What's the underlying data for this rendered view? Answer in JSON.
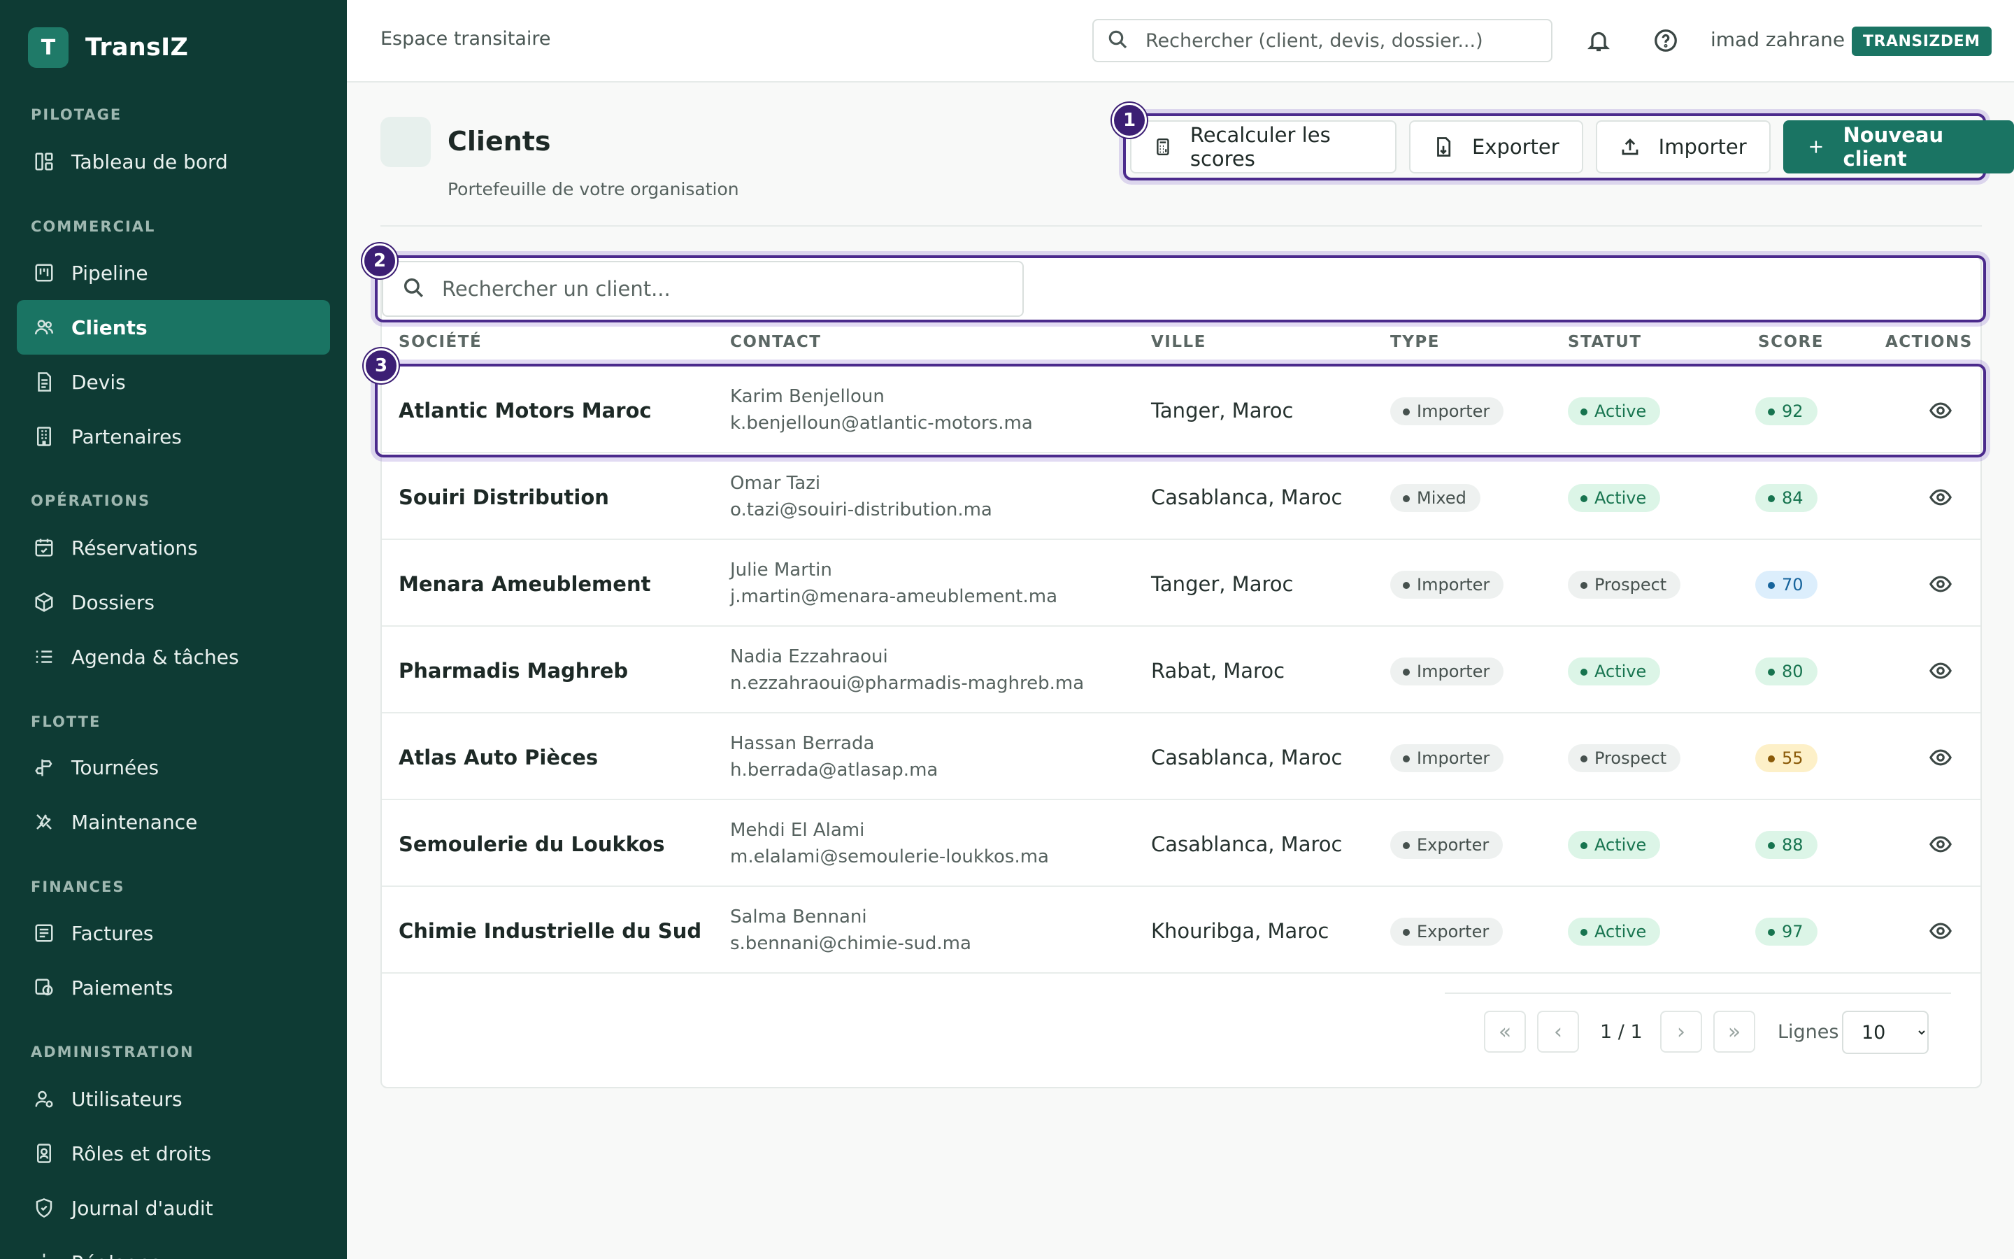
{
  "brand": {
    "logo_letter": "T",
    "name": "TransIZ"
  },
  "sidebar": {
    "sections": [
      {
        "title": "PILOTAGE",
        "items": [
          {
            "label": "Tableau de bord",
            "icon": "dashboard-icon"
          }
        ]
      },
      {
        "title": "COMMERCIAL",
        "items": [
          {
            "label": "Pipeline",
            "icon": "pipeline-icon"
          },
          {
            "label": "Clients",
            "icon": "users-icon",
            "active": true
          },
          {
            "label": "Devis",
            "icon": "document-icon"
          },
          {
            "label": "Partenaires",
            "icon": "building-icon"
          }
        ]
      },
      {
        "title": "OPÉRATIONS",
        "items": [
          {
            "label": "Réservations",
            "icon": "calendar-check-icon"
          },
          {
            "label": "Dossiers",
            "icon": "package-icon"
          },
          {
            "label": "Agenda & tâches",
            "icon": "list-icon"
          }
        ]
      },
      {
        "title": "FLOTTE",
        "items": [
          {
            "label": "Tournées",
            "icon": "route-icon"
          },
          {
            "label": "Maintenance",
            "icon": "wrench-icon"
          }
        ]
      },
      {
        "title": "FINANCES",
        "items": [
          {
            "label": "Factures",
            "icon": "invoice-icon"
          },
          {
            "label": "Paiements",
            "icon": "payment-icon"
          }
        ]
      },
      {
        "title": "ADMINISTRATION",
        "items": [
          {
            "label": "Utilisateurs",
            "icon": "user-settings-icon"
          },
          {
            "label": "Rôles et droits",
            "icon": "id-badge-icon"
          },
          {
            "label": "Journal d'audit",
            "icon": "shield-icon"
          },
          {
            "label": "Réglages",
            "icon": "settings-icon"
          }
        ]
      }
    ]
  },
  "topbar": {
    "title": "Espace transitaire",
    "search_placeholder": "Rechercher (client, devis, dossier...)",
    "user_name": "imad zahrane",
    "org_badge": "TRANSIZDEM"
  },
  "page": {
    "title": "Clients",
    "subtitle": "Portefeuille de votre organisation",
    "actions": {
      "recalc": "Recalculer les scores",
      "export": "Exporter",
      "import": "Importer",
      "new_client": "Nouveau client"
    },
    "search_placeholder": "Rechercher un client..."
  },
  "markers": [
    "1",
    "2",
    "3"
  ],
  "table": {
    "columns": [
      "SOCIÉTÉ",
      "CONTACT",
      "VILLE",
      "TYPE",
      "STATUT",
      "SCORE",
      "ACTIONS"
    ],
    "rows": [
      {
        "company": "Atlantic Motors Maroc",
        "contact_name": "Karim Benjelloun",
        "contact_email": "k.benjelloun@atlantic-motors.ma",
        "city": "Tanger, Maroc",
        "type": "Importer",
        "status": "Active",
        "score": "92",
        "score_tone": "green"
      },
      {
        "company": "Souiri Distribution",
        "contact_name": "Omar Tazi",
        "contact_email": "o.tazi@souiri-distribution.ma",
        "city": "Casablanca, Maroc",
        "type": "Mixed",
        "status": "Active",
        "score": "84",
        "score_tone": "green"
      },
      {
        "company": "Menara Ameublement",
        "contact_name": "Julie Martin",
        "contact_email": "j.martin@menara-ameublement.ma",
        "city": "Tanger, Maroc",
        "type": "Importer",
        "status": "Prospect",
        "score": "70",
        "score_tone": "blue"
      },
      {
        "company": "Pharmadis Maghreb",
        "contact_name": "Nadia Ezzahraoui",
        "contact_email": "n.ezzahraoui@pharmadis-maghreb.ma",
        "city": "Rabat, Maroc",
        "type": "Importer",
        "status": "Active",
        "score": "80",
        "score_tone": "green"
      },
      {
        "company": "Atlas Auto Pièces",
        "contact_name": "Hassan Berrada",
        "contact_email": "h.berrada@atlasap.ma",
        "city": "Casablanca, Maroc",
        "type": "Importer",
        "status": "Prospect",
        "score": "55",
        "score_tone": "amber"
      },
      {
        "company": "Semoulerie du Loukkos",
        "contact_name": "Mehdi El Alami",
        "contact_email": "m.elalami@semoulerie-loukkos.ma",
        "city": "Casablanca, Maroc",
        "type": "Exporter",
        "status": "Active",
        "score": "88",
        "score_tone": "green"
      },
      {
        "company": "Chimie Industrielle du Sud",
        "contact_name": "Salma Bennani",
        "contact_email": "s.bennani@chimie-sud.ma",
        "city": "Khouribga, Maroc",
        "type": "Exporter",
        "status": "Active",
        "score": "97",
        "score_tone": "green"
      }
    ]
  },
  "pagination": {
    "first": "«",
    "prev": "‹",
    "next": "›",
    "last": "»",
    "page_label": "1 / 1",
    "rows_label": "Lignes",
    "rows_options": [
      "10"
    ],
    "rows_value": "10"
  },
  "colors": {
    "sidebar": "#0e3b34",
    "accent": "#1a7463",
    "highlight": "#4b2a8c"
  }
}
